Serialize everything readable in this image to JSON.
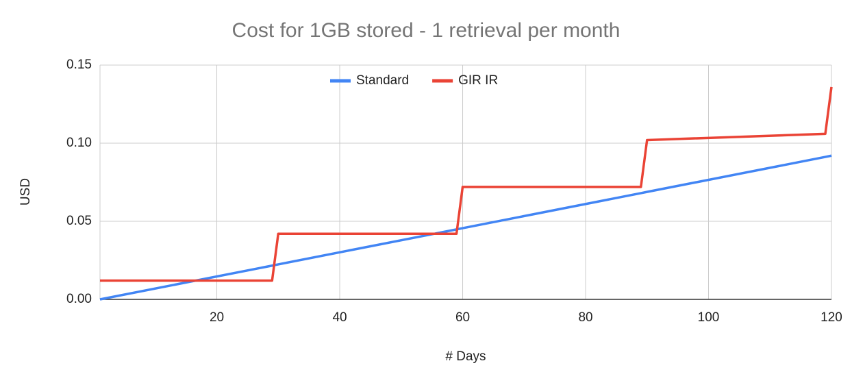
{
  "chart_data": {
    "type": "line",
    "title": "Cost for 1GB stored - 1 retrieval per month",
    "x_label": "# Days",
    "y_label": "USD",
    "x": [
      1,
      29,
      30,
      59,
      60,
      89,
      90,
      119,
      120
    ],
    "series": [
      {
        "name": "Standard",
        "color": "#4285f4",
        "values": [
          0,
          0.0216,
          0.0224,
          0.0448,
          0.0456,
          0.068,
          0.0688,
          0.0912,
          0.092
        ]
      },
      {
        "name": "GIR IR",
        "color": "#ea4335",
        "values": [
          0.012,
          0.012,
          0.042,
          0.042,
          0.072,
          0.072,
          0.102,
          0.106,
          0.136
        ]
      }
    ],
    "xlim": [
      1,
      120
    ],
    "xticks": [
      20,
      40,
      60,
      80,
      100,
      120
    ],
    "ylim": [
      0,
      0.15
    ],
    "yticks": [
      {
        "value": 0,
        "label": "0.00"
      },
      {
        "value": 0.05,
        "label": "0.05"
      },
      {
        "value": 0.1,
        "label": "0.10"
      },
      {
        "value": 0.15,
        "label": "0.15"
      }
    ],
    "grid": true,
    "legend": "top"
  }
}
